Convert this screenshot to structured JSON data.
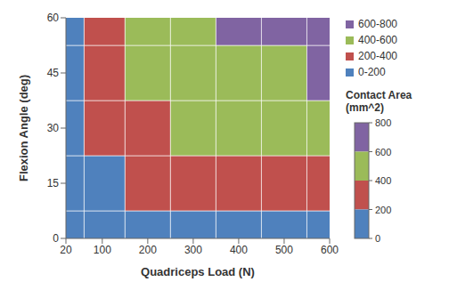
{
  "chart_data": {
    "type": "heatmap",
    "x_label": "Quadriceps Load (N)",
    "y_label": "Flexion Angle (deg)",
    "x": [
      20,
      100,
      200,
      300,
      400,
      500,
      600
    ],
    "y": [
      0,
      15,
      30,
      45,
      60
    ],
    "values": [
      [
        0,
        40,
        80,
        110,
        140,
        160,
        180
      ],
      [
        60,
        150,
        230,
        280,
        320,
        350,
        380
      ],
      [
        100,
        220,
        330,
        400,
        450,
        480,
        510
      ],
      [
        140,
        280,
        400,
        470,
        530,
        570,
        600
      ],
      [
        170,
        320,
        450,
        540,
        600,
        640,
        680
      ]
    ],
    "xlim": [
      20,
      600
    ],
    "xticks": [
      20,
      100,
      200,
      300,
      400,
      500,
      600
    ],
    "ylim": [
      0,
      60
    ],
    "yticks": [
      0,
      15,
      30,
      45,
      60
    ],
    "grid": false,
    "colorbar": {
      "label": "Contact Area (mm^2)",
      "range": [
        0,
        800
      ],
      "ticks": [
        0,
        200,
        400,
        600,
        800
      ]
    },
    "bands": [
      {
        "label": "600-800",
        "from": 600,
        "to": 800,
        "color": "#8064a2"
      },
      {
        "label": "400-600",
        "from": 400,
        "to": 600,
        "color": "#9bbb59"
      },
      {
        "label": "200-400",
        "from": 200,
        "to": 400,
        "color": "#c0504d"
      },
      {
        "label": "0-200",
        "from": 0,
        "to": 200,
        "color": "#4f81bd"
      }
    ]
  }
}
